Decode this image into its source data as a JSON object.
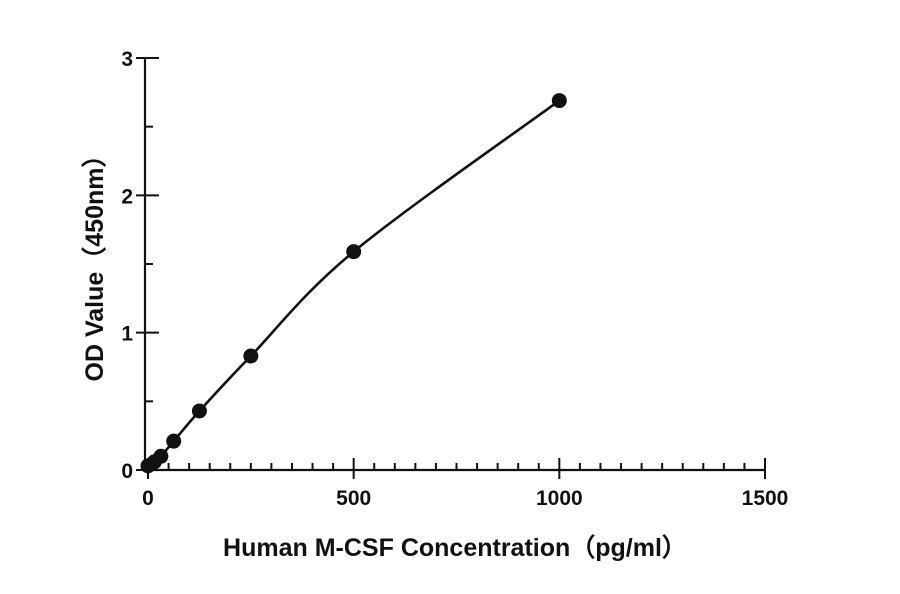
{
  "chart_data": {
    "type": "scatter",
    "xlabel": "Human M-CSF Concentration（pg/ml）",
    "ylabel": "OD Value（450nm）",
    "xlim": [
      0,
      1500
    ],
    "ylim": [
      0,
      3
    ],
    "x_ticks": [
      0,
      500,
      1000,
      1500
    ],
    "y_ticks": [
      0,
      1,
      2,
      3
    ],
    "x_minor_step": 50,
    "y_minor_step": 0.5,
    "grid": false,
    "fit_curve": true,
    "series": [
      {
        "points": [
          {
            "x": 0,
            "y": 0.03
          },
          {
            "x": 15.6,
            "y": 0.06
          },
          {
            "x": 31.25,
            "y": 0.1
          },
          {
            "x": 62.5,
            "y": 0.21
          },
          {
            "x": 125,
            "y": 0.43
          },
          {
            "x": 250,
            "y": 0.83
          },
          {
            "x": 500,
            "y": 1.59
          },
          {
            "x": 1000,
            "y": 2.69
          }
        ]
      }
    ]
  }
}
